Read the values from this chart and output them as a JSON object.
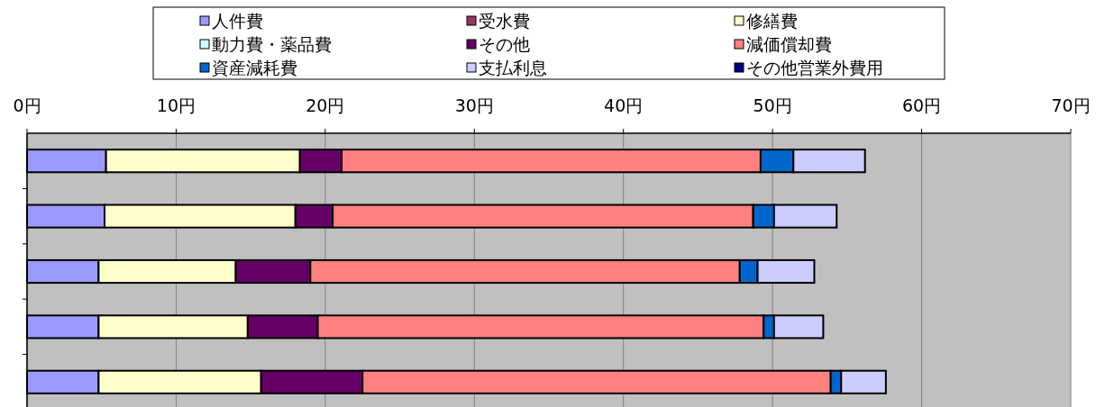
{
  "chart_data": {
    "type": "bar",
    "orientation": "horizontal",
    "stacked": true,
    "categories": [
      null,
      null,
      null,
      null,
      null
    ],
    "series": [
      {
        "name": "人件費",
        "color": "#9999ff",
        "values": [
          5.3,
          5.2,
          4.8,
          4.8,
          4.8
        ]
      },
      {
        "name": "受水費",
        "color": "#993366",
        "values": [
          0,
          0,
          0,
          0,
          0
        ]
      },
      {
        "name": "修繕費",
        "color": "#ffffcc",
        "values": [
          13.0,
          12.8,
          9.2,
          10.0,
          10.9
        ]
      },
      {
        "name": "動力費・薬品費",
        "color": "#ccffff",
        "values": [
          0,
          0,
          0,
          0,
          0
        ]
      },
      {
        "name": "その他",
        "color": "#660066",
        "values": [
          2.8,
          2.5,
          5.0,
          4.7,
          6.8
        ]
      },
      {
        "name": "減価償却費",
        "color": "#ff8080",
        "values": [
          28.1,
          28.2,
          28.8,
          29.9,
          31.4
        ]
      },
      {
        "name": "資産減耗費",
        "color": "#0066cc",
        "values": [
          2.2,
          1.4,
          1.2,
          0.7,
          0.7
        ]
      },
      {
        "name": "支払利息",
        "color": "#ccccff",
        "values": [
          4.8,
          4.2,
          3.8,
          3.3,
          3.0
        ]
      },
      {
        "name": "その他営業外費用",
        "color": "#000080",
        "values": [
          0,
          0,
          0,
          0,
          0
        ]
      }
    ],
    "xlim": [
      0,
      70
    ],
    "xticks": [
      {
        "value": 0,
        "label": "0円"
      },
      {
        "value": 10,
        "label": "10円"
      },
      {
        "value": 20,
        "label": "20円"
      },
      {
        "value": 30,
        "label": "30円"
      },
      {
        "value": 40,
        "label": "40円"
      },
      {
        "value": 50,
        "label": "50円"
      },
      {
        "value": 60,
        "label": "60円"
      },
      {
        "value": 70,
        "label": "70円"
      }
    ],
    "grid": "x",
    "legend": "top"
  }
}
